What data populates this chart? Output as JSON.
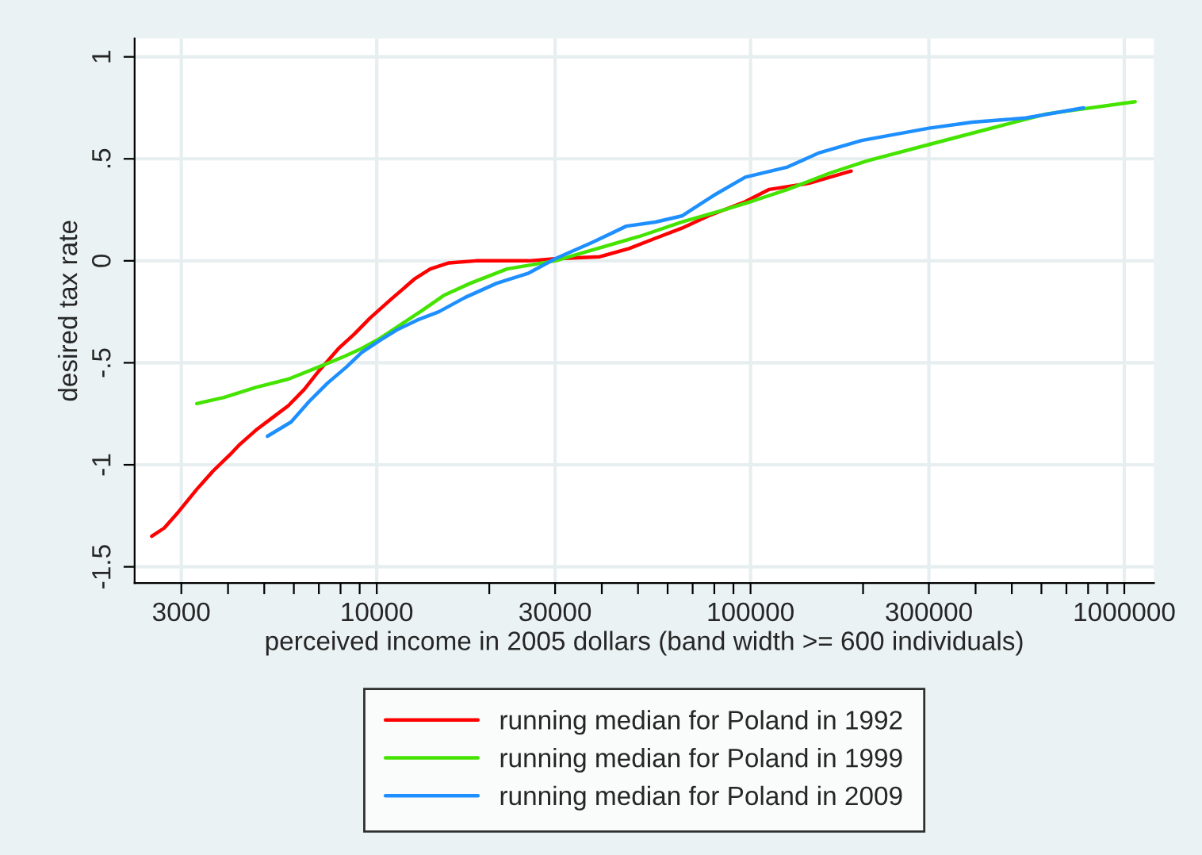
{
  "chart_data": {
    "type": "line",
    "xlabel": "perceived income in 2005 dollars (band width >= 600 individuals)",
    "ylabel": "desired tax rate",
    "log": "x",
    "xlim": [
      2250,
      1200000
    ],
    "ylim": [
      -1.58,
      1.09
    ],
    "xticks": [
      3000,
      {
        "value": 4000,
        "label": null
      },
      {
        "value": 5000,
        "label": null
      },
      {
        "value": 6000,
        "label": null
      },
      {
        "value": 7000,
        "label": null
      },
      {
        "value": 8000,
        "label": null
      },
      {
        "value": 9000,
        "label": null
      },
      10000,
      {
        "value": 20000,
        "label": null
      },
      30000,
      {
        "value": 40000,
        "label": null
      },
      {
        "value": 50000,
        "label": null
      },
      {
        "value": 60000,
        "label": null
      },
      {
        "value": 70000,
        "label": null
      },
      {
        "value": 80000,
        "label": null
      },
      {
        "value": 90000,
        "label": null
      },
      100000,
      {
        "value": 200000,
        "label": null
      },
      300000,
      {
        "value": 400000,
        "label": null
      },
      {
        "value": 500000,
        "label": null
      },
      {
        "value": 600000,
        "label": null
      },
      {
        "value": 700000,
        "label": null
      },
      {
        "value": 800000,
        "label": null
      },
      {
        "value": 900000,
        "label": null
      },
      1000000
    ],
    "yticks": [
      {
        "value": -1.5,
        "label": "-1.5"
      },
      {
        "value": -1,
        "label": "-1"
      },
      {
        "value": -0.5,
        "label": "-.5"
      },
      {
        "value": 0,
        "label": "0"
      },
      {
        "value": 0.5,
        "label": ".5"
      },
      {
        "value": 1,
        "label": "1"
      }
    ],
    "grid": true,
    "legend": "bottom",
    "line_style": "solid",
    "marker": "none",
    "series": [
      {
        "name": "running median for Poland in 1992",
        "color": "#ff0000",
        "x": [
          2500,
          2700,
          2950,
          3300,
          3650,
          4050,
          4300,
          4750,
          5250,
          5800,
          6400,
          7000,
          7900,
          8700,
          9600,
          10900,
          12600,
          13900,
          15600,
          18400,
          25500,
          30000,
          39500,
          47300,
          55600,
          65500,
          77100,
          96800,
          112200,
          143200,
          185800
        ],
        "values": [
          -1.35,
          -1.31,
          -1.23,
          -1.12,
          -1.03,
          -0.95,
          -0.9,
          -0.83,
          -0.77,
          -0.71,
          -0.63,
          -0.54,
          -0.43,
          -0.36,
          -0.28,
          -0.19,
          -0.09,
          -0.04,
          -0.01,
          0,
          0,
          0.01,
          0.02,
          0.06,
          0.11,
          0.16,
          0.22,
          0.29,
          0.35,
          0.38,
          0.44
        ]
      },
      {
        "name": "running median for Poland in 1999",
        "color": "#44e400",
        "x": [
          3300,
          3900,
          4750,
          5800,
          7000,
          8150,
          9100,
          10200,
          11650,
          13300,
          15100,
          17800,
          22300,
          30000,
          38900,
          50500,
          65500,
          84900,
          100000,
          125600,
          163000,
          204800,
          300000,
          419600,
          619700,
          1069000
        ],
        "values": [
          -0.7,
          -0.67,
          -0.62,
          -0.58,
          -0.52,
          -0.47,
          -0.43,
          -0.38,
          -0.31,
          -0.24,
          -0.17,
          -0.11,
          -0.04,
          0,
          0.06,
          0.12,
          0.19,
          0.25,
          0.29,
          0.35,
          0.43,
          0.49,
          0.57,
          0.64,
          0.72,
          0.78
        ]
      },
      {
        "name": "running median for Poland in 2009",
        "color": "#1e8fff",
        "x": [
          5100,
          5900,
          6590,
          7380,
          8300,
          9100,
          10200,
          11280,
          12850,
          14650,
          17220,
          20940,
          25500,
          30000,
          37670,
          46530,
          55600,
          65500,
          79600,
          96800,
          125600,
          152800,
          198200,
          300000,
          392700,
          544500,
          778000
        ],
        "values": [
          -0.86,
          -0.79,
          -0.69,
          -0.6,
          -0.52,
          -0.45,
          -0.39,
          -0.34,
          -0.29,
          -0.25,
          -0.18,
          -0.11,
          -0.06,
          0.01,
          0.09,
          0.17,
          0.19,
          0.22,
          0.32,
          0.41,
          0.46,
          0.53,
          0.59,
          0.65,
          0.68,
          0.7,
          0.75
        ]
      }
    ]
  }
}
